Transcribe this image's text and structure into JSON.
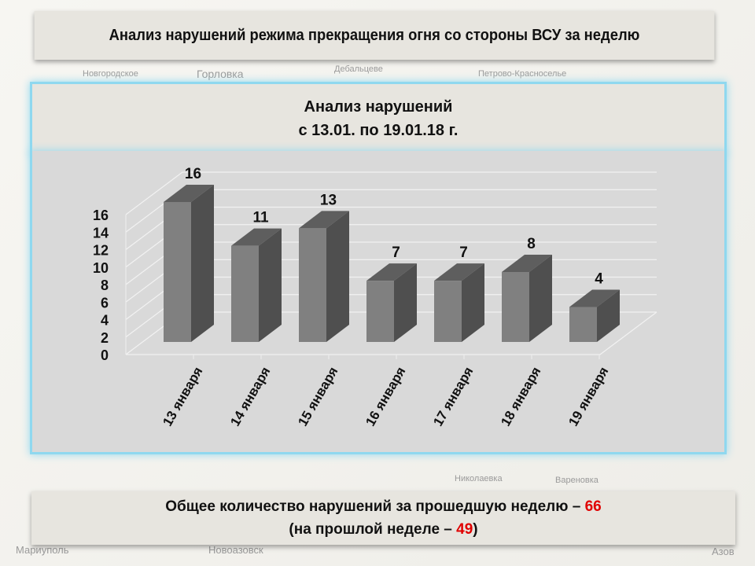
{
  "header": {
    "title": "Анализ нарушений режима прекращения огня со стороны ВСУ за неделю"
  },
  "map_labels": [
    "Новгородское",
    "Горловка",
    "Дебальцеве",
    "Петрово-Красноселье",
    "Николаевка",
    "Вареновка",
    "Мариуполь",
    "Новоазовск",
    "Азов"
  ],
  "chart_data": {
    "type": "bar",
    "title": "Анализ нарушений",
    "subtitle": "с 13.01. по 19.01.18 г.",
    "categories": [
      "13 января",
      "14 января",
      "15 января",
      "16 января",
      "17 января",
      "18 января",
      "19 января"
    ],
    "values": [
      16,
      11,
      13,
      7,
      7,
      8,
      4
    ],
    "yticks": [
      0,
      2,
      4,
      6,
      8,
      10,
      12,
      14,
      16
    ],
    "ylim": [
      0,
      16
    ],
    "xlabel": "",
    "ylabel": "",
    "grid": true,
    "front_color": "#808080",
    "side_color": "#4f4f4f",
    "top_color": "#5e5e5e"
  },
  "summary": {
    "line1": "Общее количество нарушений за прошедшую неделю – ",
    "total": "66",
    "line2_prefix": "(на прошлой неделе – ",
    "previous": "49",
    "line2_suffix": ")"
  }
}
